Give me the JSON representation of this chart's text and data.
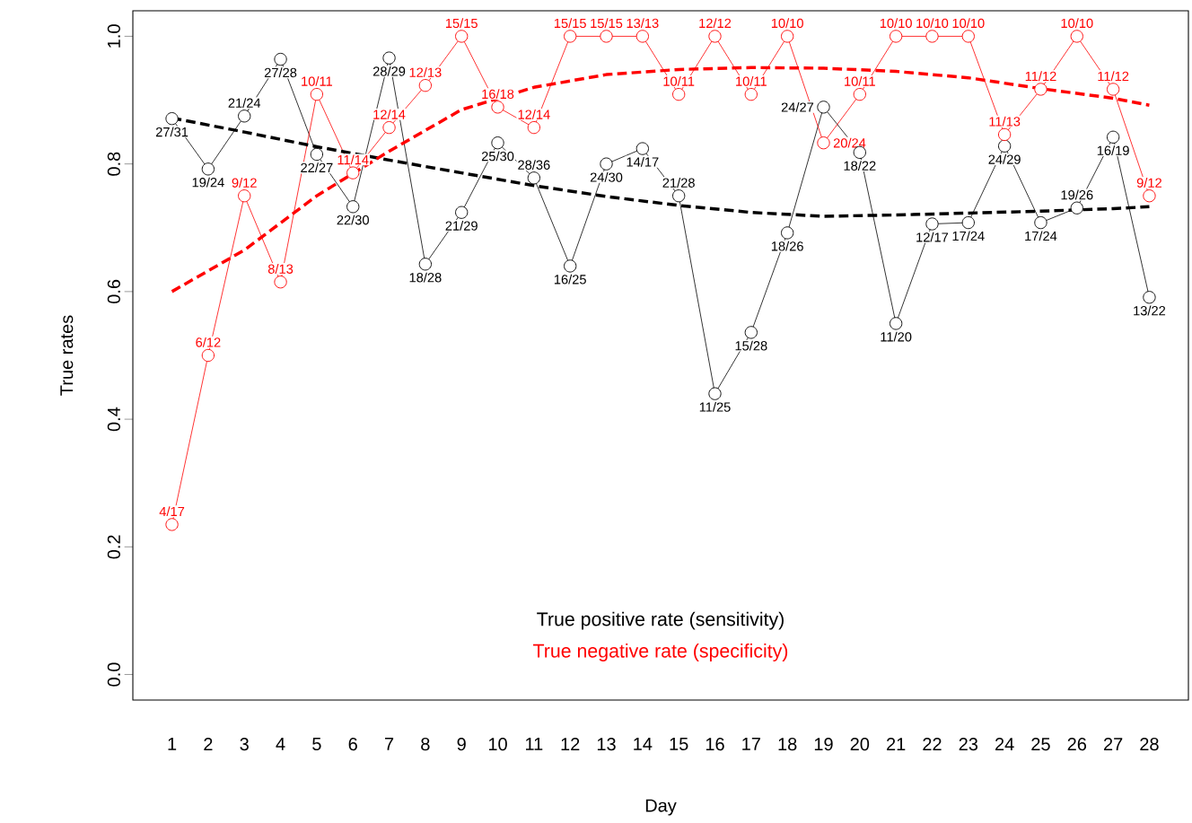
{
  "chart_data": {
    "type": "line",
    "xlabel": "Day",
    "ylabel": "True rates",
    "x": [
      1,
      2,
      3,
      4,
      5,
      6,
      7,
      8,
      9,
      10,
      11,
      12,
      13,
      14,
      15,
      16,
      17,
      18,
      19,
      20,
      21,
      22,
      23,
      24,
      25,
      26,
      27,
      28
    ],
    "xlim": [
      -0.08,
      29.08
    ],
    "xticks": [
      1,
      2,
      3,
      4,
      5,
      6,
      7,
      8,
      9,
      10,
      11,
      12,
      13,
      14,
      15,
      16,
      17,
      18,
      19,
      20,
      21,
      22,
      23,
      24,
      25,
      26,
      27,
      28
    ],
    "ylim": [
      -0.04,
      1.04
    ],
    "yticks": [
      {
        "value": 0,
        "label": "0.0"
      },
      0.2,
      0.4,
      0.6,
      0.8,
      {
        "value": 1,
        "label": "1.0"
      }
    ],
    "marker": "circle",
    "line_style": "solid",
    "legend": "bottom",
    "grid": false,
    "series": [
      {
        "name": "True positive rate (sensitivity)",
        "color": "#000000",
        "values": [
          0.871,
          0.792,
          0.875,
          0.964,
          0.815,
          0.733,
          0.966,
          0.643,
          0.724,
          0.833,
          0.778,
          0.64,
          0.8,
          0.824,
          0.75,
          0.44,
          0.536,
          0.692,
          0.889,
          0.818,
          0.55,
          0.706,
          0.708,
          0.828,
          0.708,
          0.731,
          0.842,
          0.591
        ],
        "value_labels": [
          "27/31",
          "19/24",
          "21/24",
          "27/28",
          "22/27",
          "22/30",
          "28/29",
          "18/28",
          "21/29",
          "25/30",
          "28/36",
          "16/25",
          "24/30",
          "14/17",
          "21/28",
          "11/25",
          "15/28",
          "18/26",
          "24/27",
          "18/22",
          "11/20",
          "12/17",
          "17/24",
          "24/29",
          "17/24",
          "19/26",
          "16/19",
          "13/22"
        ]
      },
      {
        "name": "True negative rate (specificity)",
        "color": "#ff0000",
        "values": [
          0.235,
          0.5,
          0.75,
          0.615,
          0.909,
          0.786,
          0.857,
          0.923,
          1,
          0.889,
          0.857,
          1,
          1,
          1,
          0.909,
          1,
          0.909,
          1,
          0.833,
          0.909,
          1,
          1,
          1,
          0.846,
          0.917,
          1,
          0.917,
          0.75
        ],
        "value_labels": [
          "4/17",
          "6/12",
          "9/12",
          "8/13",
          "10/11",
          "11/14",
          "12/14",
          "12/13",
          "15/15",
          "16/18",
          "12/14",
          "15/15",
          "15/15",
          "13/13",
          "10/11",
          "12/12",
          "10/11",
          "10/10",
          "20/24",
          "10/11",
          "10/10",
          "10/10",
          "10/10",
          "11/13",
          "11/12",
          "10/10",
          "11/12",
          "9/12"
        ]
      },
      {
        "type": "line",
        "line_style": "dashed",
        "marker": "none",
        "color": "#000000",
        "x": [
          1,
          3,
          5,
          7,
          9,
          11,
          13,
          15,
          17,
          19,
          21,
          23,
          25,
          27,
          28
        ],
        "values": [
          0.872,
          0.85,
          0.827,
          0.806,
          0.786,
          0.766,
          0.749,
          0.735,
          0.724,
          0.718,
          0.72,
          0.723,
          0.726,
          0.73,
          0.733
        ]
      },
      {
        "type": "line",
        "line_style": "dashed",
        "marker": "none",
        "color": "#ff0000",
        "x": [
          1,
          3,
          5,
          7,
          9,
          11,
          13,
          15,
          17,
          19,
          21,
          23,
          25,
          27,
          28
        ],
        "values": [
          0.6,
          0.665,
          0.75,
          0.82,
          0.885,
          0.92,
          0.94,
          0.948,
          0.951,
          0.95,
          0.945,
          0.935,
          0.918,
          0.903,
          0.892
        ]
      }
    ]
  }
}
